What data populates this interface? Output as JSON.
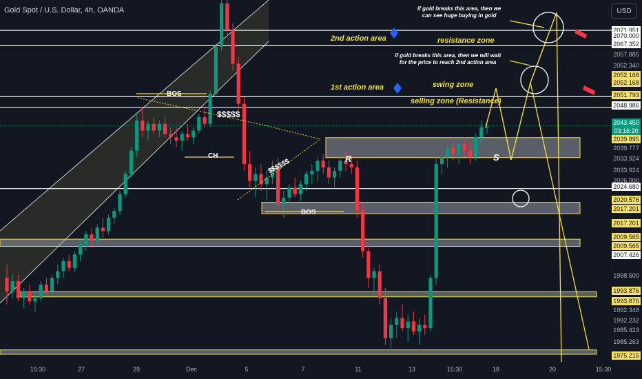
{
  "header": {
    "symbol_title": "Gold Spot / U.S. Dollar, 4h, OANDA",
    "currency": "USD"
  },
  "chart_data": {
    "type": "candlestick",
    "title": "Gold Spot / U.S. Dollar, 4h, OANDA",
    "ylim": [
      1970,
      2082
    ],
    "x_ticks": [
      "15:30",
      "27",
      "29",
      "Dec",
      "5",
      "7",
      "11",
      "13",
      "15:30",
      "18",
      "20",
      "15:30"
    ],
    "last_price": "2043.450",
    "countdown": "03:16:20",
    "price_labels": [
      {
        "value": "2071.951",
        "style": "white"
      },
      {
        "value": "2070.000",
        "style": "white"
      },
      {
        "value": "2067.352",
        "style": "white"
      },
      {
        "value": "2057.885",
        "style": "plain"
      },
      {
        "value": "2052.340",
        "style": "plain"
      },
      {
        "value": "2052.168",
        "style": "yellow"
      },
      {
        "value": "2052.168",
        "style": "yellow"
      },
      {
        "value": "2051.793",
        "style": "yellow"
      },
      {
        "value": "2048.986",
        "style": "white"
      },
      {
        "value": "2039.895",
        "style": "yellow"
      },
      {
        "value": "2039.777",
        "style": "plain"
      },
      {
        "value": "2033.924",
        "style": "plain"
      },
      {
        "value": "2033.924",
        "style": "plain"
      },
      {
        "value": "2026.000",
        "style": "plain"
      },
      {
        "value": "2024.680",
        "style": "white"
      },
      {
        "value": "2020.576",
        "style": "yellow"
      },
      {
        "value": "2017.201",
        "style": "yellow"
      },
      {
        "value": "2017.201",
        "style": "yellow"
      },
      {
        "value": "2009.565",
        "style": "yellow"
      },
      {
        "value": "2009.565",
        "style": "yellow"
      },
      {
        "value": "2007.426",
        "style": "white"
      },
      {
        "value": "1998.500",
        "style": "plain"
      },
      {
        "value": "1993.876",
        "style": "yellow"
      },
      {
        "value": "1993.876",
        "style": "yellow"
      },
      {
        "value": "1992.348",
        "style": "plain"
      },
      {
        "value": "1992.232",
        "style": "plain"
      },
      {
        "value": "1985.423",
        "style": "plain"
      },
      {
        "value": "1985.263",
        "style": "plain"
      },
      {
        "value": "1975.215",
        "style": "yellow"
      }
    ],
    "horizontal_levels": [
      2071.951,
      2067.352,
      2052.168,
      2048.986,
      2024.68
    ],
    "zones": [
      {
        "low": 2033.924,
        "high": 2039.895
      },
      {
        "low": 2017.201,
        "high": 2020.576
      },
      {
        "low": 2007.426,
        "high": 2009.565
      },
      {
        "low": 1992.348,
        "high": 1993.876
      },
      {
        "low": 1975.215,
        "high": 1976.5
      }
    ],
    "candles": [
      [
        1998,
        2002,
        1990,
        1994
      ],
      [
        1994,
        1999,
        1992,
        1997
      ],
      [
        1997,
        1999,
        1991,
        1992
      ],
      [
        1992,
        1995,
        1989,
        1994
      ],
      [
        1994,
        1996,
        1990,
        1991
      ],
      [
        1991,
        1994,
        1988,
        1992
      ],
      [
        1992,
        1997,
        1991,
        1996
      ],
      [
        1996,
        1998,
        1993,
        1994
      ],
      [
        1994,
        1999,
        1993,
        1998
      ],
      [
        1998,
        2002,
        1996,
        2000
      ],
      [
        2000,
        2004,
        1998,
        2003
      ],
      [
        2003,
        2005,
        2000,
        2001
      ],
      [
        2001,
        2006,
        2000,
        2005
      ],
      [
        2005,
        2009,
        2003,
        2008
      ],
      [
        2008,
        2012,
        2006,
        2011
      ],
      [
        2011,
        2013,
        2007,
        2009
      ],
      [
        2009,
        2014,
        2008,
        2013
      ],
      [
        2013,
        2016,
        2010,
        2012
      ],
      [
        2012,
        2017,
        2011,
        2016
      ],
      [
        2016,
        2019,
        2014,
        2018
      ],
      [
        2018,
        2024,
        2017,
        2023
      ],
      [
        2023,
        2030,
        2022,
        2029
      ],
      [
        2029,
        2037,
        2028,
        2036
      ],
      [
        2036,
        2047,
        2034,
        2045
      ],
      [
        2045,
        2049,
        2040,
        2042
      ],
      [
        2042,
        2045,
        2039,
        2044
      ],
      [
        2044,
        2046,
        2041,
        2042
      ],
      [
        2042,
        2045,
        2040,
        2044
      ],
      [
        2044,
        2046,
        2040,
        2041
      ],
      [
        2041,
        2043,
        2038,
        2040
      ],
      [
        2040,
        2043,
        2037,
        2039
      ],
      [
        2039,
        2042,
        2036,
        2041
      ],
      [
        2041,
        2044,
        2039,
        2040
      ],
      [
        2040,
        2043,
        2038,
        2042
      ],
      [
        2042,
        2047,
        2041,
        2046
      ],
      [
        2046,
        2049,
        2043,
        2044
      ],
      [
        2044,
        2054,
        2043,
        2053
      ],
      [
        2053,
        2068,
        2052,
        2067
      ],
      [
        2067,
        2082,
        2066,
        2080
      ],
      [
        2080,
        2082,
        2070,
        2072
      ],
      [
        2072,
        2074,
        2060,
        2062
      ],
      [
        2062,
        2064,
        2048,
        2050
      ],
      [
        2050,
        2052,
        2030,
        2032
      ],
      [
        2032,
        2036,
        2025,
        2027
      ],
      [
        2027,
        2031,
        2022,
        2029
      ],
      [
        2029,
        2032,
        2024,
        2026
      ],
      [
        2026,
        2030,
        2021,
        2028
      ],
      [
        2028,
        2033,
        2026,
        2031
      ],
      [
        2031,
        2034,
        2018,
        2020
      ],
      [
        2020,
        2024,
        2016,
        2022
      ],
      [
        2022,
        2026,
        2020,
        2025
      ],
      [
        2025,
        2028,
        2022,
        2023
      ],
      [
        2023,
        2027,
        2021,
        2026
      ],
      [
        2026,
        2030,
        2024,
        2029
      ],
      [
        2029,
        2032,
        2026,
        2030
      ],
      [
        2030,
        2034,
        2027,
        2033
      ],
      [
        2033,
        2035,
        2029,
        2031
      ],
      [
        2031,
        2033,
        2026,
        2028
      ],
      [
        2028,
        2031,
        2025,
        2030
      ],
      [
        2030,
        2034,
        2028,
        2033
      ],
      [
        2033,
        2036,
        2030,
        2032
      ],
      [
        2032,
        2034,
        2029,
        2031
      ],
      [
        2031,
        2033,
        2016,
        2018
      ],
      [
        2018,
        2020,
        2004,
        2006
      ],
      [
        2006,
        2008,
        1995,
        1998
      ],
      [
        1998,
        2001,
        1993,
        2000
      ],
      [
        2000,
        2002,
        1990,
        1992
      ],
      [
        1992,
        1995,
        1978,
        1980
      ],
      [
        1980,
        1986,
        1977,
        1984
      ],
      [
        1984,
        1988,
        1980,
        1986
      ],
      [
        1986,
        1990,
        1982,
        1983
      ],
      [
        1983,
        1987,
        1979,
        1985
      ],
      [
        1985,
        1988,
        1981,
        1982
      ],
      [
        1982,
        1986,
        1978,
        1984
      ],
      [
        1984,
        1987,
        1981,
        1983
      ],
      [
        1983,
        1999,
        1982,
        1998
      ],
      [
        1998,
        2034,
        1996,
        2032
      ],
      [
        2032,
        2036,
        2029,
        2034
      ],
      [
        2034,
        2039,
        2031,
        2037
      ],
      [
        2037,
        2040,
        2033,
        2035
      ],
      [
        2035,
        2039,
        2032,
        2038
      ],
      [
        2038,
        2040,
        2034,
        2036
      ],
      [
        2036,
        2039,
        2032,
        2034
      ],
      [
        2034,
        2041,
        2033,
        2040
      ],
      [
        2040,
        2045,
        2038,
        2043
      ],
      [
        2043,
        2044,
        2041,
        2043
      ]
    ],
    "annotations": {
      "bos_top": "BOS",
      "ch": "CH",
      "dollars_top": "$$$$$",
      "dollars_mid": "$$$$$$",
      "bos_bottom": "BOS",
      "r": "R",
      "s": "S",
      "action2": "2nd action area",
      "action1": "1st action area",
      "resistance_zone": "resistance zone",
      "swing_zone": "swing zone",
      "selling_zone": "selling zone (Resistance)",
      "note_top_1": "if gold breaks this area, then we",
      "note_top_2": "can see huge buying in gold",
      "note_mid_1": "if gold breaks this area, then we will wait",
      "note_mid_2": "for the price to reach 2nd action area"
    }
  },
  "colors": {
    "bull": "#089981",
    "bear": "#f23645",
    "yellow": "#f5e034",
    "bg": "#131722"
  }
}
